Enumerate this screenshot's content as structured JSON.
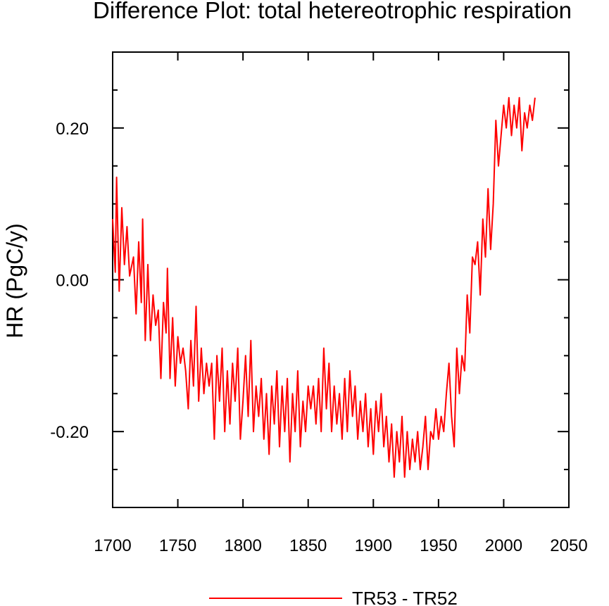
{
  "chart_data": {
    "type": "line",
    "title": "Difference Plot: total hetereotrophic respiration",
    "xlabel": "",
    "ylabel": "HR  (PgC/y)",
    "xlim": [
      1700,
      2050
    ],
    "ylim": [
      -0.3,
      0.3
    ],
    "x_ticks": [
      1700,
      1750,
      1800,
      1850,
      1900,
      1950,
      2000,
      2050
    ],
    "x_tick_labels": [
      "1700",
      "1750",
      "1800",
      "1850",
      "1900",
      "1950",
      "2000",
      "2050"
    ],
    "y_ticks": [
      -0.2,
      0.0,
      0.2
    ],
    "y_tick_labels": [
      "-0.20",
      "0.00",
      "0.20"
    ],
    "grid": false,
    "legend_position": "bottom",
    "series": [
      {
        "name": "TR53 - TR52",
        "color": "#ff0000",
        "points": [
          [
            1700,
            0.08
          ],
          [
            1702,
            0.01
          ],
          [
            1703,
            0.135
          ],
          [
            1705,
            -0.015
          ],
          [
            1707,
            0.095
          ],
          [
            1709,
            0.02
          ],
          [
            1711,
            0.07
          ],
          [
            1713,
            0.005
          ],
          [
            1716,
            0.03
          ],
          [
            1718,
            -0.045
          ],
          [
            1720,
            0.05
          ],
          [
            1722,
            -0.03
          ],
          [
            1723,
            0.08
          ],
          [
            1725,
            -0.08
          ],
          [
            1727,
            0.02
          ],
          [
            1729,
            -0.08
          ],
          [
            1731,
            -0.02
          ],
          [
            1733,
            -0.06
          ],
          [
            1735,
            -0.04
          ],
          [
            1737,
            -0.13
          ],
          [
            1739,
            -0.03
          ],
          [
            1741,
            -0.07
          ],
          [
            1742,
            0.015
          ],
          [
            1744,
            -0.13
          ],
          [
            1746,
            -0.05
          ],
          [
            1748,
            -0.14
          ],
          [
            1750,
            -0.075
          ],
          [
            1752,
            -0.11
          ],
          [
            1754,
            -0.09
          ],
          [
            1756,
            -0.12
          ],
          [
            1758,
            -0.17
          ],
          [
            1760,
            -0.08
          ],
          [
            1762,
            -0.14
          ],
          [
            1764,
            -0.035
          ],
          [
            1766,
            -0.16
          ],
          [
            1768,
            -0.09
          ],
          [
            1770,
            -0.15
          ],
          [
            1772,
            -0.11
          ],
          [
            1774,
            -0.14
          ],
          [
            1776,
            -0.11
          ],
          [
            1778,
            -0.21
          ],
          [
            1780,
            -0.1
          ],
          [
            1782,
            -0.16
          ],
          [
            1784,
            -0.09
          ],
          [
            1786,
            -0.2
          ],
          [
            1788,
            -0.12
          ],
          [
            1790,
            -0.19
          ],
          [
            1792,
            -0.11
          ],
          [
            1794,
            -0.16
          ],
          [
            1796,
            -0.09
          ],
          [
            1798,
            -0.21
          ],
          [
            1800,
            -0.16
          ],
          [
            1802,
            -0.1
          ],
          [
            1804,
            -0.18
          ],
          [
            1806,
            -0.08
          ],
          [
            1808,
            -0.2
          ],
          [
            1810,
            -0.14
          ],
          [
            1812,
            -0.18
          ],
          [
            1814,
            -0.13
          ],
          [
            1816,
            -0.21
          ],
          [
            1818,
            -0.15
          ],
          [
            1820,
            -0.23
          ],
          [
            1822,
            -0.14
          ],
          [
            1824,
            -0.19
          ],
          [
            1826,
            -0.12
          ],
          [
            1828,
            -0.22
          ],
          [
            1830,
            -0.14
          ],
          [
            1832,
            -0.2
          ],
          [
            1834,
            -0.13
          ],
          [
            1836,
            -0.24
          ],
          [
            1838,
            -0.15
          ],
          [
            1840,
            -0.2
          ],
          [
            1842,
            -0.12
          ],
          [
            1844,
            -0.22
          ],
          [
            1846,
            -0.16
          ],
          [
            1848,
            -0.2
          ],
          [
            1850,
            -0.14
          ],
          [
            1852,
            -0.17
          ],
          [
            1854,
            -0.14
          ],
          [
            1856,
            -0.19
          ],
          [
            1858,
            -0.13
          ],
          [
            1860,
            -0.2
          ],
          [
            1862,
            -0.09
          ],
          [
            1864,
            -0.17
          ],
          [
            1866,
            -0.11
          ],
          [
            1868,
            -0.2
          ],
          [
            1870,
            -0.14
          ],
          [
            1872,
            -0.19
          ],
          [
            1874,
            -0.15
          ],
          [
            1876,
            -0.21
          ],
          [
            1878,
            -0.13
          ],
          [
            1880,
            -0.2
          ],
          [
            1882,
            -0.12
          ],
          [
            1884,
            -0.18
          ],
          [
            1886,
            -0.14
          ],
          [
            1888,
            -0.21
          ],
          [
            1890,
            -0.16
          ],
          [
            1892,
            -0.2
          ],
          [
            1894,
            -0.15
          ],
          [
            1896,
            -0.22
          ],
          [
            1898,
            -0.17
          ],
          [
            1900,
            -0.23
          ],
          [
            1902,
            -0.16
          ],
          [
            1904,
            -0.2
          ],
          [
            1906,
            -0.15
          ],
          [
            1908,
            -0.22
          ],
          [
            1910,
            -0.18
          ],
          [
            1912,
            -0.24
          ],
          [
            1914,
            -0.19
          ],
          [
            1916,
            -0.26
          ],
          [
            1918,
            -0.2
          ],
          [
            1920,
            -0.24
          ],
          [
            1922,
            -0.18
          ],
          [
            1924,
            -0.26
          ],
          [
            1926,
            -0.2
          ],
          [
            1928,
            -0.25
          ],
          [
            1930,
            -0.21
          ],
          [
            1932,
            -0.24
          ],
          [
            1934,
            -0.2
          ],
          [
            1936,
            -0.25
          ],
          [
            1938,
            -0.22
          ],
          [
            1940,
            -0.18
          ],
          [
            1942,
            -0.25
          ],
          [
            1944,
            -0.2
          ],
          [
            1946,
            -0.21
          ],
          [
            1948,
            -0.17
          ],
          [
            1950,
            -0.21
          ],
          [
            1952,
            -0.18
          ],
          [
            1954,
            -0.2
          ],
          [
            1956,
            -0.15
          ],
          [
            1958,
            -0.11
          ],
          [
            1960,
            -0.18
          ],
          [
            1962,
            -0.22
          ],
          [
            1964,
            -0.09
          ],
          [
            1966,
            -0.15
          ],
          [
            1968,
            -0.1
          ],
          [
            1970,
            -0.12
          ],
          [
            1972,
            -0.02
          ],
          [
            1974,
            -0.07
          ],
          [
            1976,
            0.03
          ],
          [
            1978,
            0.02
          ],
          [
            1980,
            0.05
          ],
          [
            1982,
            -0.02
          ],
          [
            1984,
            0.08
          ],
          [
            1986,
            0.03
          ],
          [
            1988,
            0.12
          ],
          [
            1990,
            0.04
          ],
          [
            1992,
            0.1
          ],
          [
            1994,
            0.21
          ],
          [
            1996,
            0.15
          ],
          [
            1998,
            0.19
          ],
          [
            2000,
            0.23
          ],
          [
            2002,
            0.2
          ],
          [
            2004,
            0.24
          ],
          [
            2006,
            0.19
          ],
          [
            2008,
            0.23
          ],
          [
            2010,
            0.2
          ],
          [
            2012,
            0.24
          ],
          [
            2014,
            0.17
          ],
          [
            2016,
            0.22
          ],
          [
            2018,
            0.2
          ],
          [
            2020,
            0.23
          ],
          [
            2022,
            0.21
          ],
          [
            2024,
            0.24
          ]
        ]
      }
    ]
  }
}
